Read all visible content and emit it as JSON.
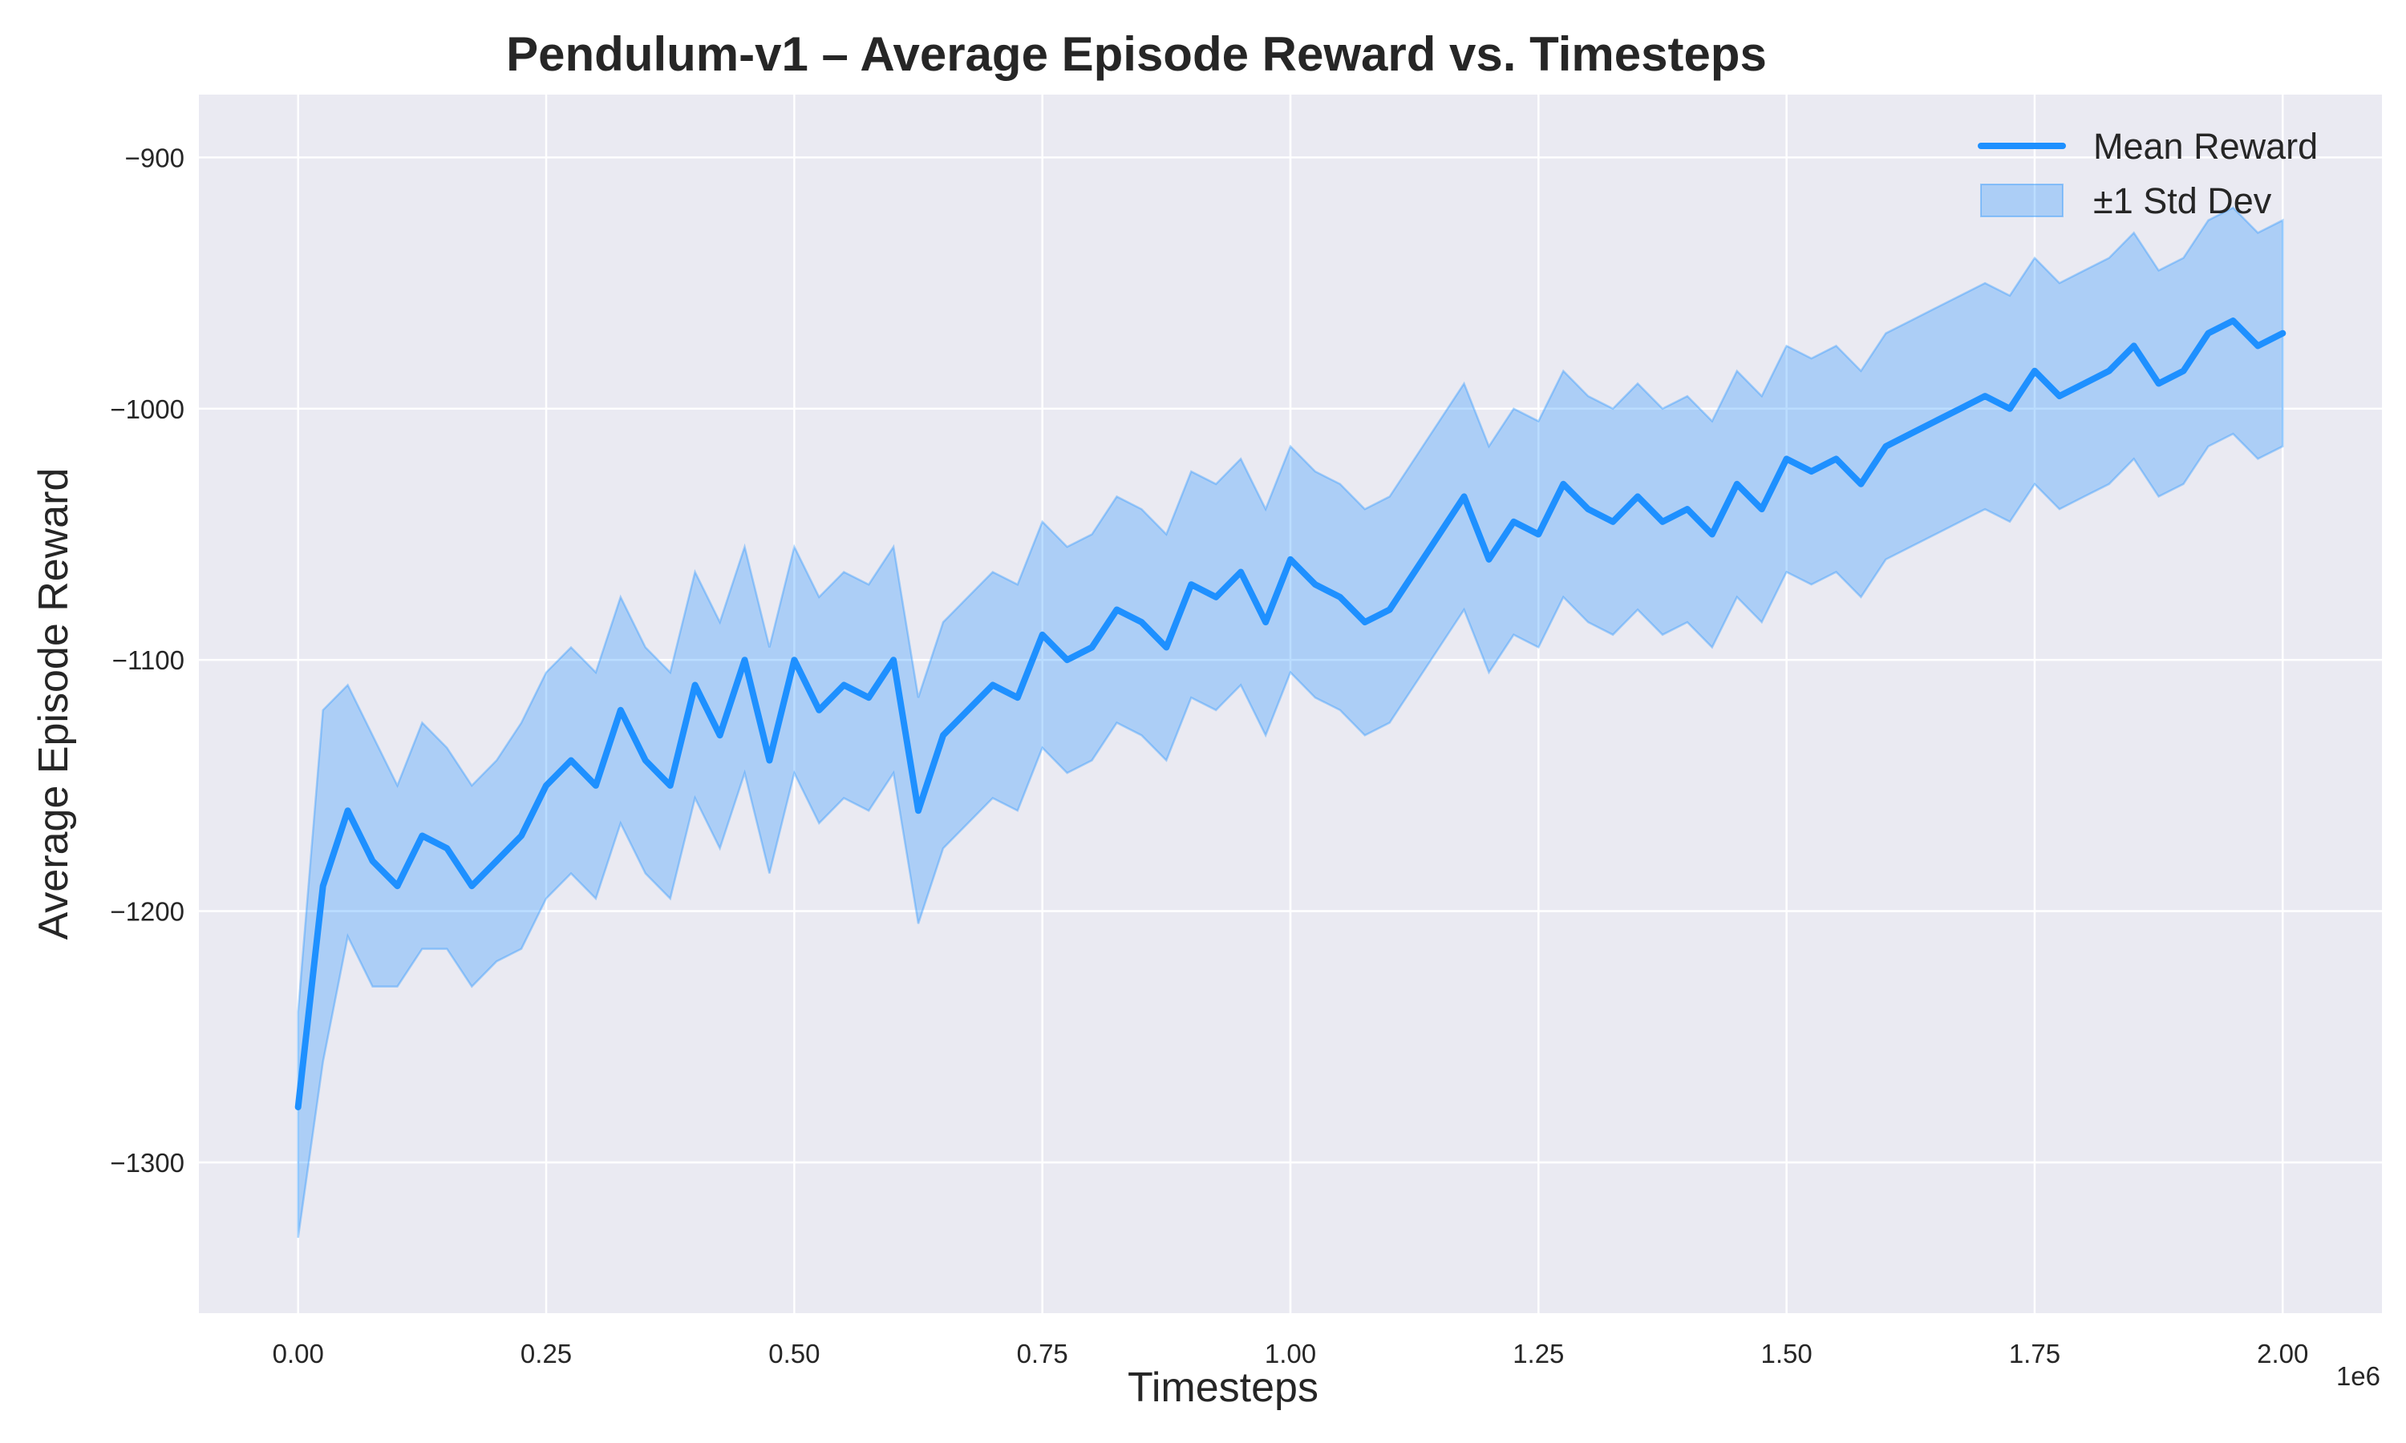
{
  "chart_data": {
    "type": "line",
    "title": "Pendulum-v1 – Average Episode Reward vs. Timesteps",
    "xlabel": "Timesteps",
    "ylabel": "Average Episode Reward",
    "x_offset_label": "1e6",
    "xlim": [
      -100000,
      2100000
    ],
    "ylim": [
      -1360,
      -875
    ],
    "xticks": [
      0,
      250000,
      500000,
      750000,
      1000000,
      1250000,
      1500000,
      1750000,
      2000000
    ],
    "xtick_labels": [
      "0.00",
      "0.25",
      "0.50",
      "0.75",
      "1.00",
      "1.25",
      "1.50",
      "1.75",
      "2.00"
    ],
    "yticks": [
      -1300,
      -1200,
      -1100,
      -1000,
      -900
    ],
    "ytick_labels": [
      "−1300",
      "−1200",
      "−1100",
      "−1000",
      "−900"
    ],
    "grid": true,
    "legend_position": "top-right",
    "colors": {
      "line": "#1e90ff",
      "band": "#1e90ff",
      "background": "#eaeaf2",
      "grid": "#ffffff"
    },
    "series": [
      {
        "name": "Mean Reward",
        "x": [
          0,
          25000,
          50000,
          75000,
          100000,
          125000,
          150000,
          175000,
          200000,
          225000,
          250000,
          275000,
          300000,
          325000,
          350000,
          375000,
          400000,
          425000,
          450000,
          475000,
          500000,
          525000,
          550000,
          575000,
          600000,
          625000,
          650000,
          675000,
          700000,
          725000,
          750000,
          775000,
          800000,
          825000,
          850000,
          875000,
          900000,
          925000,
          950000,
          975000,
          1000000,
          1025000,
          1050000,
          1075000,
          1100000,
          1125000,
          1150000,
          1175000,
          1200000,
          1225000,
          1250000,
          1275000,
          1300000,
          1325000,
          1350000,
          1375000,
          1400000,
          1425000,
          1450000,
          1475000,
          1500000,
          1525000,
          1550000,
          1575000,
          1600000,
          1625000,
          1650000,
          1675000,
          1700000,
          1725000,
          1750000,
          1775000,
          1800000,
          1825000,
          1850000,
          1875000,
          1900000,
          1925000,
          1950000,
          1975000,
          2000000
        ],
        "values": [
          -1278,
          -1190,
          -1160,
          -1180,
          -1190,
          -1170,
          -1175,
          -1190,
          -1180,
          -1170,
          -1150,
          -1140,
          -1150,
          -1120,
          -1140,
          -1150,
          -1110,
          -1130,
          -1100,
          -1140,
          -1100,
          -1120,
          -1110,
          -1115,
          -1100,
          -1160,
          -1130,
          -1120,
          -1110,
          -1115,
          -1090,
          -1100,
          -1095,
          -1080,
          -1085,
          -1095,
          -1070,
          -1075,
          -1065,
          -1085,
          -1060,
          -1070,
          -1075,
          -1085,
          -1080,
          -1065,
          -1050,
          -1035,
          -1060,
          -1045,
          -1050,
          -1030,
          -1040,
          -1045,
          -1035,
          -1045,
          -1040,
          -1050,
          -1030,
          -1040,
          -1020,
          -1025,
          -1020,
          -1030,
          -1015,
          -1010,
          -1005,
          -1000,
          -995,
          -1000,
          -985,
          -995,
          -990,
          -985,
          -975,
          -990,
          -985,
          -970,
          -965,
          -975,
          -970
        ]
      }
    ],
    "band": {
      "name": "±1 Std Dev",
      "upper": [
        -1240,
        -1120,
        -1110,
        -1130,
        -1150,
        -1125,
        -1135,
        -1150,
        -1140,
        -1125,
        -1105,
        -1095,
        -1105,
        -1075,
        -1095,
        -1105,
        -1065,
        -1085,
        -1055,
        -1095,
        -1055,
        -1075,
        -1065,
        -1070,
        -1055,
        -1115,
        -1085,
        -1075,
        -1065,
        -1070,
        -1045,
        -1055,
        -1050,
        -1035,
        -1040,
        -1050,
        -1025,
        -1030,
        -1020,
        -1040,
        -1015,
        -1025,
        -1030,
        -1040,
        -1035,
        -1020,
        -1005,
        -990,
        -1015,
        -1000,
        -1005,
        -985,
        -995,
        -1000,
        -990,
        -1000,
        -995,
        -1005,
        -985,
        -995,
        -975,
        -980,
        -975,
        -985,
        -970,
        -965,
        -960,
        -955,
        -950,
        -955,
        -940,
        -950,
        -945,
        -940,
        -930,
        -945,
        -940,
        -925,
        -920,
        -930,
        -925
      ],
      "lower": [
        -1330,
        -1260,
        -1210,
        -1230,
        -1230,
        -1215,
        -1215,
        -1230,
        -1220,
        -1215,
        -1195,
        -1185,
        -1195,
        -1165,
        -1185,
        -1195,
        -1155,
        -1175,
        -1145,
        -1185,
        -1145,
        -1165,
        -1155,
        -1160,
        -1145,
        -1205,
        -1175,
        -1165,
        -1155,
        -1160,
        -1135,
        -1145,
        -1140,
        -1125,
        -1130,
        -1140,
        -1115,
        -1120,
        -1110,
        -1130,
        -1105,
        -1115,
        -1120,
        -1130,
        -1125,
        -1110,
        -1095,
        -1080,
        -1105,
        -1090,
        -1095,
        -1075,
        -1085,
        -1090,
        -1080,
        -1090,
        -1085,
        -1095,
        -1075,
        -1085,
        -1065,
        -1070,
        -1065,
        -1075,
        -1060,
        -1055,
        -1050,
        -1045,
        -1040,
        -1045,
        -1030,
        -1040,
        -1035,
        -1030,
        -1020,
        -1035,
        -1030,
        -1015,
        -1010,
        -1020,
        -1015
      ]
    }
  }
}
